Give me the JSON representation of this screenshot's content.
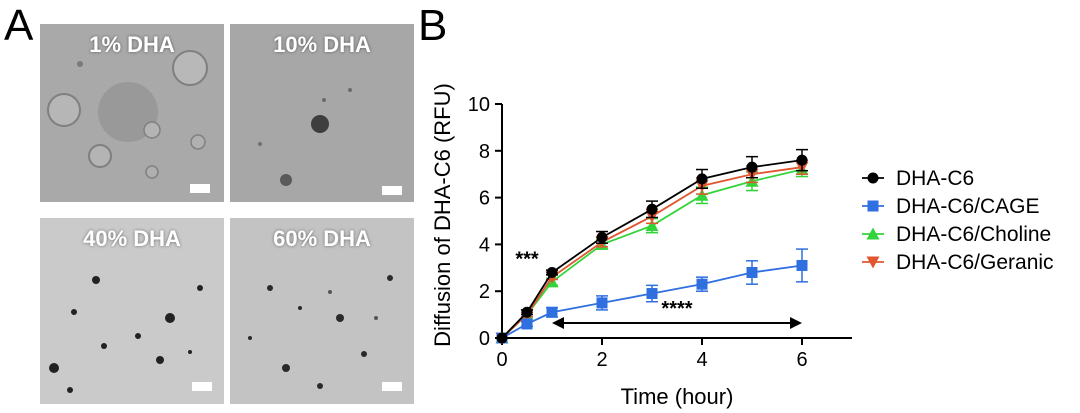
{
  "panel_a": {
    "letter": "A",
    "images": [
      {
        "label": "1% DHA"
      },
      {
        "label": "10% DHA"
      },
      {
        "label": "40% DHA"
      },
      {
        "label": "60% DHA"
      }
    ]
  },
  "panel_b": {
    "letter": "B"
  },
  "chart_data": {
    "type": "line",
    "xlabel": "Time (hour)",
    "ylabel": "Diffusion of DHA-C6 (RFU)",
    "xlim": [
      0,
      7
    ],
    "ylim": [
      0,
      10
    ],
    "xticks": [
      0,
      2,
      4,
      6
    ],
    "yticks": [
      0,
      2,
      4,
      6,
      8,
      10
    ],
    "x": [
      0,
      0.5,
      1,
      2,
      3,
      4,
      5,
      6
    ],
    "legend_position": "right",
    "series": [
      {
        "name": "DHA-C6",
        "color": "#000000",
        "marker": "circle",
        "values": [
          0,
          1.1,
          2.8,
          4.3,
          5.5,
          6.8,
          7.3,
          7.6
        ],
        "errors": [
          0,
          0.1,
          0.1,
          0.25,
          0.35,
          0.4,
          0.45,
          0.45
        ]
      },
      {
        "name": "DHA-C6/CAGE",
        "color": "#2f6fe0",
        "marker": "square",
        "values": [
          0,
          0.6,
          1.1,
          1.5,
          1.9,
          2.3,
          2.8,
          3.1
        ],
        "errors": [
          0,
          0.1,
          0.2,
          0.3,
          0.35,
          0.3,
          0.5,
          0.7
        ]
      },
      {
        "name": "DHA-C6/Choline",
        "color": "#33d43a",
        "marker": "triangle-up",
        "values": [
          0,
          1.0,
          2.4,
          4.0,
          4.8,
          6.1,
          6.7,
          7.2
        ],
        "errors": [
          0,
          0.1,
          0.15,
          0.2,
          0.3,
          0.35,
          0.4,
          0.3
        ]
      },
      {
        "name": "DHA-C6/Geranic",
        "color": "#e2562f",
        "marker": "triangle-down",
        "values": [
          0,
          1.0,
          2.6,
          4.1,
          5.2,
          6.5,
          7.0,
          7.3
        ],
        "errors": [
          0,
          0.1,
          0.1,
          0.2,
          0.3,
          0.35,
          0.35,
          0.3
        ]
      }
    ],
    "annotations": [
      {
        "text": "***",
        "x": 0.5,
        "y": 3.1
      },
      {
        "text": "****",
        "x": 3.5,
        "y": 0.9,
        "span": [
          1,
          6
        ]
      }
    ]
  }
}
